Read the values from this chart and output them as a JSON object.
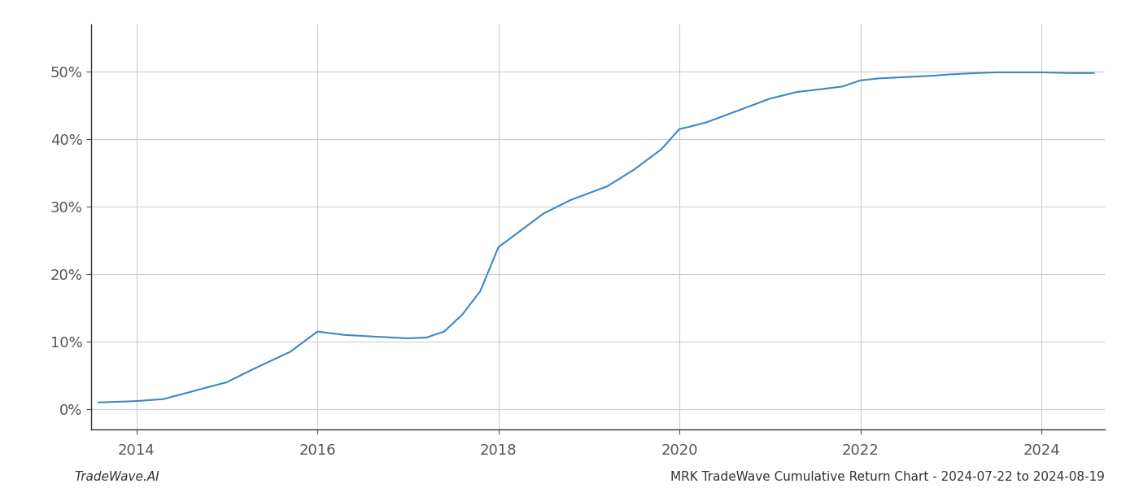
{
  "x_values": [
    2013.58,
    2014.0,
    2014.3,
    2014.58,
    2015.0,
    2015.3,
    2015.7,
    2016.0,
    2016.3,
    2016.7,
    2017.0,
    2017.2,
    2017.4,
    2017.6,
    2017.8,
    2018.0,
    2018.2,
    2018.5,
    2018.8,
    2019.0,
    2019.2,
    2019.5,
    2019.8,
    2020.0,
    2020.1,
    2020.3,
    2020.5,
    2020.8,
    2021.0,
    2021.3,
    2021.5,
    2021.8,
    2022.0,
    2022.2,
    2022.5,
    2022.8,
    2023.0,
    2023.3,
    2023.5,
    2023.8,
    2024.0,
    2024.3,
    2024.58
  ],
  "y_values": [
    1.0,
    1.2,
    1.5,
    2.5,
    4.0,
    6.0,
    8.5,
    11.5,
    11.0,
    10.7,
    10.5,
    10.6,
    11.5,
    14.0,
    17.5,
    24.0,
    26.0,
    29.0,
    31.0,
    32.0,
    33.0,
    35.5,
    38.5,
    41.5,
    41.8,
    42.5,
    43.5,
    45.0,
    46.0,
    47.0,
    47.3,
    47.8,
    48.7,
    49.0,
    49.2,
    49.4,
    49.6,
    49.8,
    49.9,
    49.9,
    49.9,
    49.8,
    49.8
  ],
  "line_color": "#3a87c8",
  "background_color": "#ffffff",
  "grid_color": "#cccccc",
  "yticks": [
    0,
    10,
    20,
    30,
    40,
    50
  ],
  "xticks": [
    2014,
    2016,
    2018,
    2020,
    2022,
    2024
  ],
  "xlabel": "",
  "ylabel": "",
  "title": "",
  "footer_left": "TradeWave.AI",
  "footer_right": "MRK TradeWave Cumulative Return Chart - 2024-07-22 to 2024-08-19",
  "footer_fontsize": 11,
  "line_width": 1.5,
  "ylim": [
    -3,
    57
  ],
  "xlim": [
    2013.5,
    2024.7
  ]
}
